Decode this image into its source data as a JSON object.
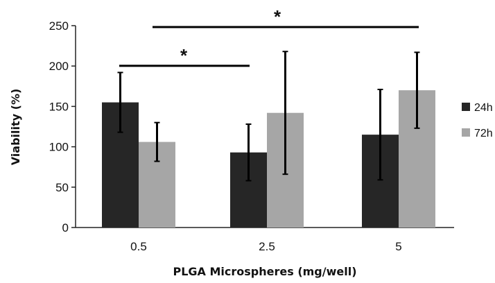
{
  "chart_data": {
    "type": "bar",
    "xlabel": "PLGA Microspheres (mg/well)",
    "ylabel": "Viability (%)",
    "ylim": [
      0,
      250
    ],
    "yticks": [
      0,
      50,
      100,
      150,
      200,
      250
    ],
    "categories": [
      "0.5",
      "2.5",
      "5"
    ],
    "grid": false,
    "legend_position": "right",
    "series": [
      {
        "name": "24h",
        "color": "#262626",
        "values": [
          155,
          93,
          115
        ],
        "error": [
          37,
          35,
          56
        ]
      },
      {
        "name": "72h",
        "color": "#a6a6a6",
        "values": [
          106,
          142,
          170
        ],
        "error": [
          24,
          76,
          47
        ]
      }
    ],
    "annotations": [
      {
        "label": "*",
        "from_category": "0.5",
        "to_category": "2.5",
        "y": 202
      },
      {
        "label": "*",
        "from_category": "0.5",
        "to_category": "5",
        "y": 250
      }
    ]
  }
}
